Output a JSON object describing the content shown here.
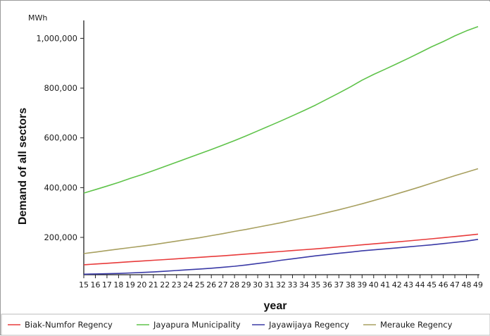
{
  "chart_data": {
    "type": "line",
    "title": "",
    "unit_label": "MWh",
    "xlabel": "year",
    "ylabel": "Demand  of all sectors",
    "ylim": [
      50000,
      1055000
    ],
    "yticks": [
      200000,
      400000,
      600000,
      800000,
      1000000
    ],
    "ytick_labels": [
      "200,000",
      "400,000",
      "600,000",
      "800,000",
      "1,000,000"
    ],
    "x": [
      "15",
      "16",
      "17",
      "18",
      "19",
      "20",
      "21",
      "22",
      "23",
      "24",
      "25",
      "26",
      "27",
      "28",
      "29",
      "30",
      "31",
      "32",
      "33",
      "34",
      "35",
      "36",
      "37",
      "38",
      "39",
      "40",
      "41",
      "42",
      "43",
      "44",
      "45",
      "46",
      "47",
      "48",
      "49"
    ],
    "grid": false,
    "legend_position": "bottom",
    "series": [
      {
        "name": "Biak-Numfor Regency",
        "color": "#e83b3b",
        "values": [
          90000,
          93000,
          96000,
          99000,
          102000,
          105000,
          108000,
          111000,
          114000,
          117000,
          120000,
          123000,
          126000,
          129500,
          133000,
          136500,
          140000,
          143500,
          147000,
          150500,
          154000,
          158000,
          162000,
          166000,
          170000,
          174000,
          178000,
          182000,
          186000,
          190000,
          194500,
          199000,
          203500,
          208000,
          213000
        ]
      },
      {
        "name": "Jayapura Municipality",
        "color": "#5fc34a",
        "values": [
          378000,
          392000,
          406000,
          421000,
          437000,
          452000,
          468000,
          485000,
          502000,
          519000,
          536000,
          553000,
          571000,
          589000,
          608000,
          628000,
          648000,
          668000,
          689000,
          710000,
          732000,
          756000,
          780000,
          805000,
          832000,
          855000,
          876000,
          898000,
          920000,
          943000,
          966000,
          987000,
          1010000,
          1030000,
          1047000
        ]
      },
      {
        "name": "Jayawijaya Regency",
        "color": "#3a3aa6",
        "values": [
          52000,
          53000,
          54000,
          55000,
          57000,
          59000,
          61000,
          64000,
          67000,
          70000,
          73000,
          76000,
          80000,
          84000,
          89000,
          95000,
          101000,
          108000,
          114000,
          120000,
          126000,
          131000,
          136000,
          141000,
          146000,
          150000,
          154000,
          158000,
          162000,
          166000,
          170000,
          175000,
          180000,
          185000,
          192000
        ]
      },
      {
        "name": "Merauke Regency",
        "color": "#a8a060",
        "values": [
          135000,
          141000,
          147000,
          153000,
          159000,
          165000,
          171000,
          178000,
          185000,
          192000,
          199000,
          207000,
          215000,
          224000,
          232000,
          241000,
          250000,
          259000,
          269000,
          279000,
          289000,
          300000,
          311000,
          323000,
          335000,
          348000,
          361000,
          375000,
          389000,
          403000,
          418000,
          433000,
          448000,
          462000,
          476000
        ]
      }
    ]
  }
}
